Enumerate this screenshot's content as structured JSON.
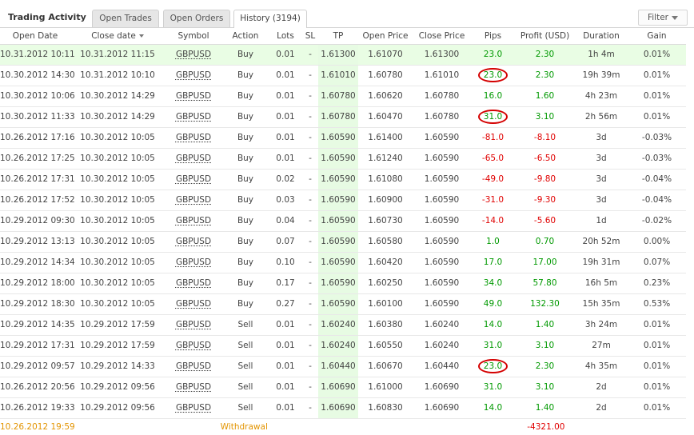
{
  "header": {
    "title": "Trading Activity",
    "tabs": [
      "Open Trades",
      "Open Orders",
      "History (3194)"
    ],
    "filter_label": "Filter"
  },
  "columns": [
    "Open Date",
    "Close date",
    "Symbol",
    "Action",
    "Lots",
    "SL",
    "TP",
    "Open Price",
    "Close Price",
    "Pips",
    "Profit (USD)",
    "Duration",
    "Gain"
  ],
  "rows": [
    {
      "open": "10.31.2012 10:11",
      "close": "10.31.2012 11:15",
      "symbol": "GBPUSD",
      "action": "Buy",
      "lots": "0.01",
      "sl": "-",
      "tp": "1.61300",
      "open_price": "1.61070",
      "close_price": "1.61300",
      "pips": "23.0",
      "profit": "2.30",
      "duration": "1h 4m",
      "gain": "0.01%"
    },
    {
      "open": "10.30.2012 14:30",
      "close": "10.31.2012 10:10",
      "symbol": "GBPUSD",
      "action": "Buy",
      "lots": "0.01",
      "sl": "-",
      "tp": "1.61010",
      "open_price": "1.60780",
      "close_price": "1.61010",
      "pips": "23.0",
      "profit": "2.30",
      "duration": "19h 39m",
      "gain": "0.01%"
    },
    {
      "open": "10.30.2012 10:06",
      "close": "10.30.2012 14:29",
      "symbol": "GBPUSD",
      "action": "Buy",
      "lots": "0.01",
      "sl": "-",
      "tp": "1.60780",
      "open_price": "1.60620",
      "close_price": "1.60780",
      "pips": "16.0",
      "profit": "1.60",
      "duration": "4h 23m",
      "gain": "0.01%"
    },
    {
      "open": "10.30.2012 11:33",
      "close": "10.30.2012 14:29",
      "symbol": "GBPUSD",
      "action": "Buy",
      "lots": "0.01",
      "sl": "-",
      "tp": "1.60780",
      "open_price": "1.60470",
      "close_price": "1.60780",
      "pips": "31.0",
      "profit": "3.10",
      "duration": "2h 56m",
      "gain": "0.01%"
    },
    {
      "open": "10.26.2012 17:16",
      "close": "10.30.2012 10:05",
      "symbol": "GBPUSD",
      "action": "Buy",
      "lots": "0.01",
      "sl": "-",
      "tp": "1.60590",
      "open_price": "1.61400",
      "close_price": "1.60590",
      "pips": "-81.0",
      "profit": "-8.10",
      "duration": "3d",
      "gain": "-0.03%"
    },
    {
      "open": "10.26.2012 17:25",
      "close": "10.30.2012 10:05",
      "symbol": "GBPUSD",
      "action": "Buy",
      "lots": "0.01",
      "sl": "-",
      "tp": "1.60590",
      "open_price": "1.61240",
      "close_price": "1.60590",
      "pips": "-65.0",
      "profit": "-6.50",
      "duration": "3d",
      "gain": "-0.03%"
    },
    {
      "open": "10.26.2012 17:31",
      "close": "10.30.2012 10:05",
      "symbol": "GBPUSD",
      "action": "Buy",
      "lots": "0.02",
      "sl": "-",
      "tp": "1.60590",
      "open_price": "1.61080",
      "close_price": "1.60590",
      "pips": "-49.0",
      "profit": "-9.80",
      "duration": "3d",
      "gain": "-0.04%"
    },
    {
      "open": "10.26.2012 17:52",
      "close": "10.30.2012 10:05",
      "symbol": "GBPUSD",
      "action": "Buy",
      "lots": "0.03",
      "sl": "-",
      "tp": "1.60590",
      "open_price": "1.60900",
      "close_price": "1.60590",
      "pips": "-31.0",
      "profit": "-9.30",
      "duration": "3d",
      "gain": "-0.04%"
    },
    {
      "open": "10.29.2012 09:30",
      "close": "10.30.2012 10:05",
      "symbol": "GBPUSD",
      "action": "Buy",
      "lots": "0.04",
      "sl": "-",
      "tp": "1.60590",
      "open_price": "1.60730",
      "close_price": "1.60590",
      "pips": "-14.0",
      "profit": "-5.60",
      "duration": "1d",
      "gain": "-0.02%"
    },
    {
      "open": "10.29.2012 13:13",
      "close": "10.30.2012 10:05",
      "symbol": "GBPUSD",
      "action": "Buy",
      "lots": "0.07",
      "sl": "-",
      "tp": "1.60590",
      "open_price": "1.60580",
      "close_price": "1.60590",
      "pips": "1.0",
      "profit": "0.70",
      "duration": "20h 52m",
      "gain": "0.00%"
    },
    {
      "open": "10.29.2012 14:34",
      "close": "10.30.2012 10:05",
      "symbol": "GBPUSD",
      "action": "Buy",
      "lots": "0.10",
      "sl": "-",
      "tp": "1.60590",
      "open_price": "1.60420",
      "close_price": "1.60590",
      "pips": "17.0",
      "profit": "17.00",
      "duration": "19h 31m",
      "gain": "0.07%"
    },
    {
      "open": "10.29.2012 18:00",
      "close": "10.30.2012 10:05",
      "symbol": "GBPUSD",
      "action": "Buy",
      "lots": "0.17",
      "sl": "-",
      "tp": "1.60590",
      "open_price": "1.60250",
      "close_price": "1.60590",
      "pips": "34.0",
      "profit": "57.80",
      "duration": "16h 5m",
      "gain": "0.23%"
    },
    {
      "open": "10.29.2012 18:30",
      "close": "10.30.2012 10:05",
      "symbol": "GBPUSD",
      "action": "Buy",
      "lots": "0.27",
      "sl": "-",
      "tp": "1.60590",
      "open_price": "1.60100",
      "close_price": "1.60590",
      "pips": "49.0",
      "profit": "132.30",
      "duration": "15h 35m",
      "gain": "0.53%"
    },
    {
      "open": "10.29.2012 14:35",
      "close": "10.29.2012 17:59",
      "symbol": "GBPUSD",
      "action": "Sell",
      "lots": "0.01",
      "sl": "-",
      "tp": "1.60240",
      "open_price": "1.60380",
      "close_price": "1.60240",
      "pips": "14.0",
      "profit": "1.40",
      "duration": "3h 24m",
      "gain": "0.01%"
    },
    {
      "open": "10.29.2012 17:31",
      "close": "10.29.2012 17:59",
      "symbol": "GBPUSD",
      "action": "Sell",
      "lots": "0.01",
      "sl": "-",
      "tp": "1.60240",
      "open_price": "1.60550",
      "close_price": "1.60240",
      "pips": "31.0",
      "profit": "3.10",
      "duration": "27m",
      "gain": "0.01%"
    },
    {
      "open": "10.29.2012 09:57",
      "close": "10.29.2012 14:33",
      "symbol": "GBPUSD",
      "action": "Sell",
      "lots": "0.01",
      "sl": "-",
      "tp": "1.60440",
      "open_price": "1.60670",
      "close_price": "1.60440",
      "pips": "23.0",
      "profit": "2.30",
      "duration": "4h 35m",
      "gain": "0.01%"
    },
    {
      "open": "10.26.2012 20:56",
      "close": "10.29.2012 09:56",
      "symbol": "GBPUSD",
      "action": "Sell",
      "lots": "0.01",
      "sl": "-",
      "tp": "1.60690",
      "open_price": "1.61000",
      "close_price": "1.60690",
      "pips": "31.0",
      "profit": "3.10",
      "duration": "2d",
      "gain": "0.01%"
    },
    {
      "open": "10.26.2012 19:33",
      "close": "10.29.2012 09:56",
      "symbol": "GBPUSD",
      "action": "Sell",
      "lots": "0.01",
      "sl": "-",
      "tp": "1.60690",
      "open_price": "1.60830",
      "close_price": "1.60690",
      "pips": "14.0",
      "profit": "1.40",
      "duration": "2d",
      "gain": "0.01%"
    }
  ],
  "withdrawal_row": {
    "open": "10.26.2012 19:59",
    "action": "Withdrawal",
    "profit": "-4321.00"
  },
  "colors": {
    "positive": "#009900",
    "negative": "#e00000",
    "highlight_row": "#e9fde4",
    "tp_column": "#e7fbe3",
    "withdrawal": "#e39400",
    "circle_annotation": "#d40000"
  }
}
